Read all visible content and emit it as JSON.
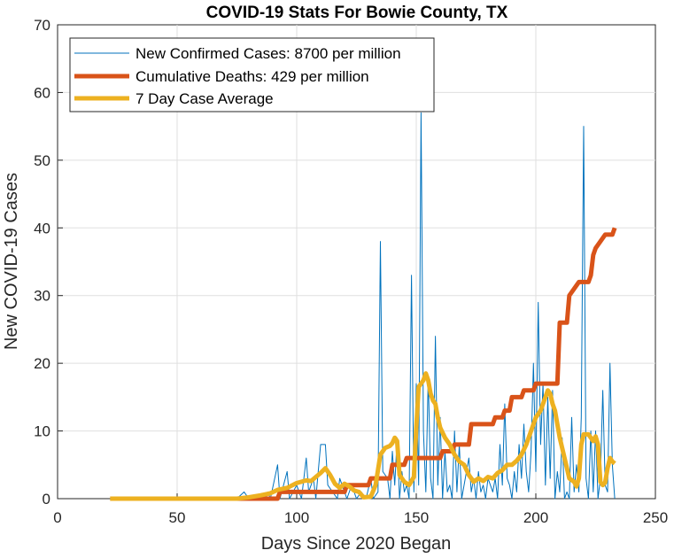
{
  "chart_data": {
    "type": "line",
    "title": "COVID-19 Stats For Bowie County, TX",
    "xlabel": "Days Since 2020 Began",
    "ylabel": "New COVID-19 Cases",
    "xlim": [
      0,
      250
    ],
    "ylim": [
      0,
      70
    ],
    "xticks": [
      0,
      50,
      100,
      150,
      200,
      250
    ],
    "yticks": [
      0,
      10,
      20,
      30,
      40,
      50,
      60,
      70
    ],
    "grid": true,
    "legend_position": "top-left",
    "series": [
      {
        "name": "New Confirmed Cases: 8700 per million",
        "color": "#0072BD",
        "line_width": "thin",
        "points": [
          [
            22,
            0
          ],
          [
            75,
            0
          ],
          [
            78,
            1
          ],
          [
            80,
            0
          ],
          [
            87,
            0
          ],
          [
            88,
            1
          ],
          [
            89,
            0
          ],
          [
            92,
            5
          ],
          [
            93,
            0
          ],
          [
            96,
            4
          ],
          [
            97,
            0
          ],
          [
            100,
            2
          ],
          [
            102,
            0
          ],
          [
            104,
            6
          ],
          [
            105,
            1
          ],
          [
            107,
            3
          ],
          [
            108,
            0
          ],
          [
            110,
            8
          ],
          [
            112,
            8
          ],
          [
            113,
            2
          ],
          [
            115,
            1
          ],
          [
            117,
            0
          ],
          [
            118,
            3
          ],
          [
            120,
            1
          ],
          [
            121,
            0
          ],
          [
            123,
            2
          ],
          [
            125,
            0
          ],
          [
            127,
            1
          ],
          [
            129,
            0
          ],
          [
            131,
            3
          ],
          [
            132,
            0
          ],
          [
            134,
            1
          ],
          [
            135,
            38
          ],
          [
            136,
            4
          ],
          [
            138,
            3
          ],
          [
            139,
            0
          ],
          [
            140,
            7
          ],
          [
            141,
            2
          ],
          [
            142,
            9
          ],
          [
            143,
            0
          ],
          [
            144,
            4
          ],
          [
            145,
            1
          ],
          [
            146,
            2
          ],
          [
            147,
            0
          ],
          [
            148,
            33
          ],
          [
            149,
            1
          ],
          [
            150,
            17
          ],
          [
            151,
            2
          ],
          [
            152,
            57
          ],
          [
            153,
            10
          ],
          [
            154,
            1
          ],
          [
            155,
            18
          ],
          [
            156,
            3
          ],
          [
            157,
            0
          ],
          [
            158,
            24
          ],
          [
            159,
            2
          ],
          [
            160,
            12
          ],
          [
            161,
            0
          ],
          [
            162,
            7
          ],
          [
            163,
            1
          ],
          [
            164,
            2
          ],
          [
            165,
            0
          ],
          [
            166,
            10
          ],
          [
            167,
            1
          ],
          [
            168,
            8
          ],
          [
            169,
            0
          ],
          [
            170,
            2
          ],
          [
            172,
            6
          ],
          [
            173,
            1
          ],
          [
            174,
            3
          ],
          [
            175,
            0
          ],
          [
            176,
            4
          ],
          [
            177,
            1
          ],
          [
            178,
            2
          ],
          [
            179,
            0
          ],
          [
            180,
            3
          ],
          [
            182,
            1
          ],
          [
            183,
            3
          ],
          [
            184,
            0
          ],
          [
            185,
            8
          ],
          [
            186,
            2
          ],
          [
            187,
            14
          ],
          [
            188,
            3
          ],
          [
            189,
            2
          ],
          [
            190,
            0
          ],
          [
            191,
            4
          ],
          [
            192,
            1
          ],
          [
            193,
            8
          ],
          [
            194,
            3
          ],
          [
            195,
            11
          ],
          [
            196,
            4
          ],
          [
            197,
            1
          ],
          [
            198,
            7
          ],
          [
            199,
            20
          ],
          [
            200,
            4
          ],
          [
            201,
            29
          ],
          [
            202,
            8
          ],
          [
            203,
            17
          ],
          [
            204,
            2
          ],
          [
            205,
            15
          ],
          [
            206,
            3
          ],
          [
            207,
            16
          ],
          [
            208,
            0
          ],
          [
            209,
            4
          ],
          [
            210,
            1
          ],
          [
            211,
            9
          ],
          [
            212,
            0
          ],
          [
            213,
            1
          ],
          [
            214,
            0
          ],
          [
            215,
            12
          ],
          [
            216,
            1
          ],
          [
            217,
            5
          ],
          [
            218,
            1
          ],
          [
            219,
            12
          ],
          [
            220,
            55
          ],
          [
            221,
            3
          ],
          [
            222,
            0
          ],
          [
            223,
            10
          ],
          [
            224,
            1
          ],
          [
            225,
            10
          ],
          [
            226,
            0
          ],
          [
            227,
            3
          ],
          [
            228,
            16
          ],
          [
            229,
            2
          ],
          [
            230,
            1
          ],
          [
            231,
            20
          ],
          [
            232,
            5
          ],
          [
            233,
            0
          ]
        ]
      },
      {
        "name": "Cumulative Deaths: 429 per million",
        "color": "#D95319",
        "line_width": "thick",
        "points": [
          [
            22,
            0
          ],
          [
            91,
            0
          ],
          [
            92,
            0
          ],
          [
            93,
            1
          ],
          [
            120,
            1
          ],
          [
            121,
            2
          ],
          [
            130,
            2
          ],
          [
            131,
            3
          ],
          [
            139,
            3
          ],
          [
            140,
            5
          ],
          [
            145,
            5
          ],
          [
            146,
            6
          ],
          [
            160,
            6
          ],
          [
            161,
            7
          ],
          [
            165,
            7
          ],
          [
            166,
            8
          ],
          [
            172,
            8
          ],
          [
            173,
            11
          ],
          [
            182,
            11
          ],
          [
            183,
            12
          ],
          [
            186,
            12
          ],
          [
            187,
            13
          ],
          [
            189,
            13
          ],
          [
            190,
            15
          ],
          [
            194,
            15
          ],
          [
            195,
            16
          ],
          [
            199,
            16
          ],
          [
            200,
            17
          ],
          [
            209,
            17
          ],
          [
            210,
            26
          ],
          [
            213,
            26
          ],
          [
            214,
            30
          ],
          [
            216,
            31
          ],
          [
            218,
            32
          ],
          [
            222,
            32
          ],
          [
            223,
            33
          ],
          [
            224,
            36
          ],
          [
            225,
            37
          ],
          [
            227,
            38
          ],
          [
            229,
            39
          ],
          [
            232,
            39
          ],
          [
            233,
            40
          ]
        ]
      },
      {
        "name": "7 Day Case Average",
        "color": "#EDB120",
        "line_width": "thick",
        "points": [
          [
            22,
            0
          ],
          [
            75,
            0
          ],
          [
            80,
            0.2
          ],
          [
            85,
            0.5
          ],
          [
            89,
            0.8
          ],
          [
            92,
            1.3
          ],
          [
            96,
            1.6
          ],
          [
            100,
            2.3
          ],
          [
            104,
            2.7
          ],
          [
            106,
            2.6
          ],
          [
            108,
            3.2
          ],
          [
            110,
            3.8
          ],
          [
            112,
            4.5
          ],
          [
            114,
            3.5
          ],
          [
            116,
            2.2
          ],
          [
            118,
            1.6
          ],
          [
            120,
            2.2
          ],
          [
            122,
            1.8
          ],
          [
            124,
            1.2
          ],
          [
            126,
            1.0
          ],
          [
            128,
            0.2
          ],
          [
            131,
            0.3
          ],
          [
            133,
            2.0
          ],
          [
            135,
            6.5
          ],
          [
            137,
            7.5
          ],
          [
            139,
            7.8
          ],
          [
            140,
            8.2
          ],
          [
            141,
            9.0
          ],
          [
            142,
            8.5
          ],
          [
            143,
            3.5
          ],
          [
            145,
            2.5
          ],
          [
            147,
            2.0
          ],
          [
            149,
            3.2
          ],
          [
            150,
            10.5
          ],
          [
            151,
            16.5
          ],
          [
            152,
            17.0
          ],
          [
            153,
            17.5
          ],
          [
            154,
            18.5
          ],
          [
            155,
            17.5
          ],
          [
            156,
            15.5
          ],
          [
            157,
            14.5
          ],
          [
            158,
            14.0
          ],
          [
            159,
            12.0
          ],
          [
            160,
            10.5
          ],
          [
            162,
            9.0
          ],
          [
            164,
            8.0
          ],
          [
            166,
            6.5
          ],
          [
            168,
            5.5
          ],
          [
            170,
            5.0
          ],
          [
            172,
            3.5
          ],
          [
            174,
            2.5
          ],
          [
            176,
            3.0
          ],
          [
            178,
            2.6
          ],
          [
            180,
            3.2
          ],
          [
            182,
            3.0
          ],
          [
            184,
            3.8
          ],
          [
            186,
            4.2
          ],
          [
            188,
            5.0
          ],
          [
            190,
            5.0
          ],
          [
            192,
            5.6
          ],
          [
            194,
            6.5
          ],
          [
            196,
            8.0
          ],
          [
            198,
            10.0
          ],
          [
            200,
            12.0
          ],
          [
            202,
            13.0
          ],
          [
            204,
            15.0
          ],
          [
            205,
            16.0
          ],
          [
            206,
            15.5
          ],
          [
            207,
            14.0
          ],
          [
            208,
            13.0
          ],
          [
            209,
            11.0
          ],
          [
            210,
            9.0
          ],
          [
            212,
            6.0
          ],
          [
            214,
            3.0
          ],
          [
            216,
            2.5
          ],
          [
            217,
            1.8
          ],
          [
            218,
            3.0
          ],
          [
            219,
            8.0
          ],
          [
            220,
            9.5
          ],
          [
            222,
            9.5
          ],
          [
            224,
            8.5
          ],
          [
            225,
            9.2
          ],
          [
            226,
            8.0
          ],
          [
            227,
            2.5
          ],
          [
            228,
            2.0
          ],
          [
            229,
            2.4
          ],
          [
            230,
            4.5
          ],
          [
            231,
            6.0
          ],
          [
            232,
            5.5
          ],
          [
            233,
            5.2
          ]
        ]
      }
    ]
  }
}
